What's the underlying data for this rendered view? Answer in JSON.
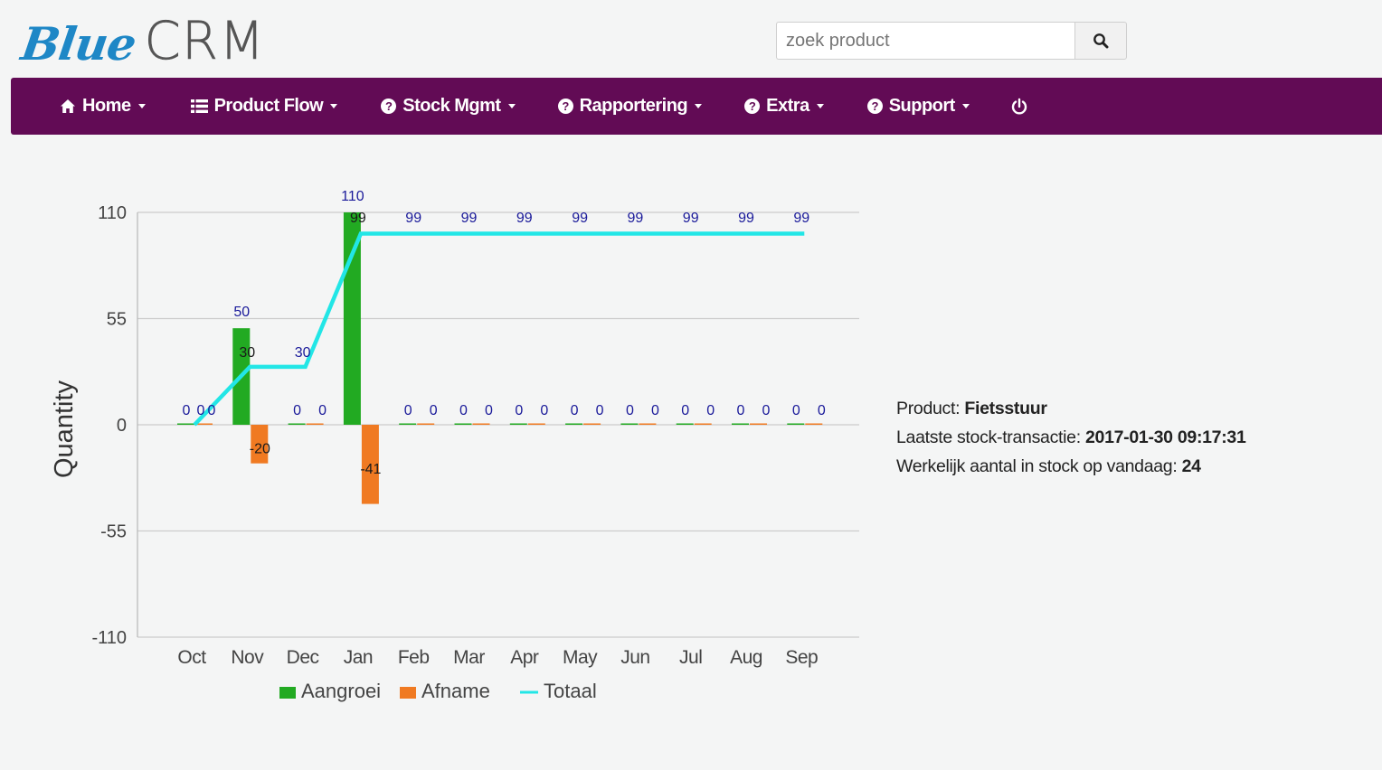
{
  "app": {
    "logo_part1": "Blue",
    "logo_part2": "CRM",
    "logo_color": "#1e87c6"
  },
  "search": {
    "placeholder": "zoek product",
    "button_icon": "search-icon"
  },
  "nav": {
    "background": "#620b55",
    "items": [
      {
        "label": "Home",
        "icon": "home-icon"
      },
      {
        "label": "Product Flow",
        "icon": "list-icon"
      },
      {
        "label": "Stock Mgmt",
        "icon": "question-circle-icon"
      },
      {
        "label": "Rapportering",
        "icon": "question-circle-icon"
      },
      {
        "label": "Extra",
        "icon": "question-circle-icon"
      },
      {
        "label": "Support",
        "icon": "question-circle-icon"
      }
    ],
    "power_icon": "power-icon"
  },
  "info": {
    "product_label": "Product:",
    "product_value": "Fietsstuur",
    "last_tx_label": "Laatste stock-transactie:",
    "last_tx_value": "2017-01-30 09:17:31",
    "stock_label": "Werkelijk aantal in stock op vandaag:",
    "stock_value": "24"
  },
  "chart_data": {
    "type": "bar",
    "title": "",
    "xlabel": "",
    "ylabel": "Quantity",
    "ylim": [
      -110,
      110
    ],
    "yticks": [
      "110",
      "55",
      "0",
      "-55",
      "-110"
    ],
    "grid": true,
    "legend_position": "bottom",
    "categories": [
      "Oct",
      "Nov",
      "Dec",
      "Jan",
      "Feb",
      "Mar",
      "Apr",
      "May",
      "Jun",
      "Jul",
      "Aug",
      "Sep"
    ],
    "series": [
      {
        "name": "Aangroei",
        "kind": "bar",
        "color": "#22aa22",
        "values": [
          0,
          50,
          0,
          110,
          0,
          0,
          0,
          0,
          0,
          0,
          0,
          0
        ]
      },
      {
        "name": "Afname",
        "kind": "bar",
        "color": "#f07a22",
        "values": [
          0,
          -20,
          0,
          -41,
          0,
          0,
          0,
          0,
          0,
          0,
          0,
          0
        ]
      },
      {
        "name": "Totaal",
        "kind": "line",
        "color": "#22e6e6",
        "values": [
          0,
          30,
          30,
          99,
          99,
          99,
          99,
          99,
          99,
          99,
          99,
          99
        ]
      }
    ]
  }
}
